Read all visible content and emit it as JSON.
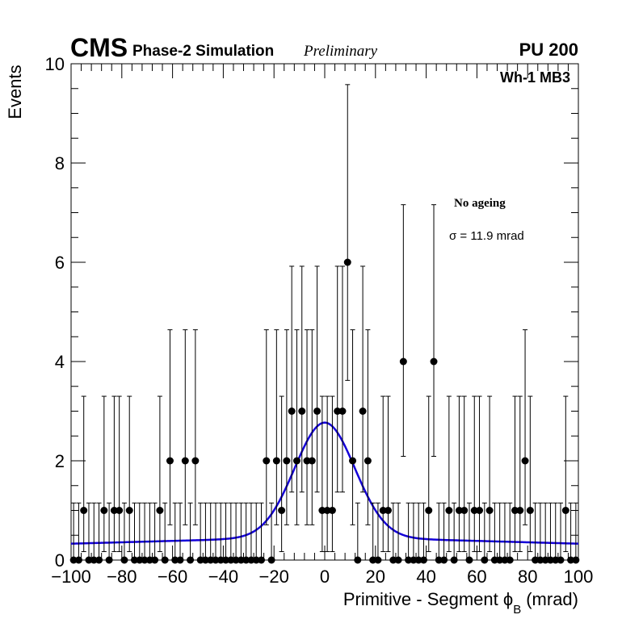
{
  "chart_data": {
    "type": "scatter",
    "header": {
      "experiment": "CMS",
      "subtitle": "Phase-2 Simulation",
      "status": "Preliminary",
      "pileup": "PU 200"
    },
    "region_label": "Wh-1 MB3",
    "annotation": "No ageing",
    "sigma_label": "σ = 11.9 mrad",
    "xlabel": "Primitive - Segment ϕ",
    "xlabel_sub": "B",
    "xlabel_unit": "(mrad)",
    "ylabel": "Events",
    "xlim": [
      -100,
      100
    ],
    "ylim": [
      0,
      10
    ],
    "x_ticks": [
      -100,
      -80,
      -60,
      -40,
      -20,
      0,
      20,
      40,
      60,
      80,
      100
    ],
    "x_tick_labels": [
      "−100",
      "−80",
      "−60",
      "−40",
      "−20",
      "0",
      "20",
      "40",
      "60",
      "80",
      "100"
    ],
    "y_ticks": [
      0,
      2,
      4,
      6,
      8,
      10
    ],
    "y_tick_labels": [
      "0",
      "2",
      "4",
      "6",
      "8",
      "10"
    ],
    "bin_width": 2,
    "counts": [
      0,
      0,
      1,
      0,
      0,
      0,
      1,
      0,
      1,
      1,
      0,
      1,
      0,
      0,
      0,
      0,
      0,
      1,
      0,
      2,
      0,
      0,
      2,
      0,
      2,
      0,
      0,
      0,
      0,
      0,
      0,
      0,
      0,
      0,
      0,
      0,
      0,
      0,
      2,
      0,
      2,
      1,
      2,
      3,
      2,
      3,
      2,
      2,
      3,
      1,
      1,
      1,
      3,
      3,
      6,
      2,
      0,
      3,
      2,
      0,
      0,
      1,
      1,
      0,
      0,
      4,
      0,
      0,
      0,
      0,
      1,
      4,
      0,
      0,
      1,
      0,
      1,
      1,
      0,
      1,
      1,
      0,
      1,
      0,
      0,
      0,
      0,
      1,
      1,
      2,
      1,
      0,
      0,
      0,
      0,
      0,
      0,
      1,
      0,
      0
    ],
    "errors_up": {
      "0": 1.15,
      "1": 2.3,
      "2": 2.64,
      "3": 2.92,
      "4": 3.16,
      "6": 3.58
    },
    "errors_down": {
      "0": 0,
      "1": 0.83,
      "2": 1.29,
      "3": 1.63,
      "4": 1.91,
      "6": 2.38
    },
    "fit": {
      "type": "gaussian+linear",
      "mean": 0,
      "sigma": 11.9,
      "amplitude": 2.3,
      "baseline_at_edges": 0.33,
      "baseline_max": 0.47,
      "color": "#1400d8"
    },
    "marker_color": "#000000"
  }
}
